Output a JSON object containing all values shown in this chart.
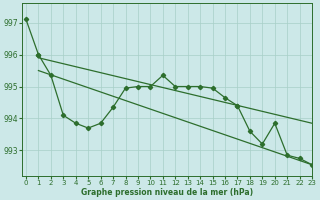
{
  "steep_line": {
    "x": [
      0,
      1
    ],
    "y": [
      997.1,
      996.0
    ]
  },
  "marker_line_a": {
    "x": [
      1,
      2,
      3,
      4,
      5,
      6,
      7,
      8,
      9,
      10,
      11,
      12,
      13,
      14,
      15,
      16,
      17
    ],
    "y": [
      996.0,
      995.35,
      994.1,
      993.85,
      993.7,
      993.85,
      994.35,
      994.95,
      995.0,
      995.0,
      995.35,
      995.0,
      995.0,
      995.0,
      994.95,
      994.65,
      994.4
    ]
  },
  "marker_line_b": {
    "x": [
      17,
      18,
      19,
      20,
      21,
      22,
      23
    ],
    "y": [
      994.4,
      993.6,
      993.2,
      993.85,
      992.85,
      992.75,
      992.55
    ]
  },
  "trend_upper": {
    "x": [
      1,
      23
    ],
    "y": [
      995.9,
      993.85
    ]
  },
  "trend_lower": {
    "x": [
      1,
      23
    ],
    "y": [
      995.5,
      992.55
    ]
  },
  "line_color": "#2d6e2d",
  "bg_color": "#cce8e8",
  "grid_color": "#a8cfc8",
  "xlabel": "Graphe pression niveau de la mer (hPa)",
  "ylim": [
    992.2,
    997.6
  ],
  "xlim": [
    -0.3,
    23
  ],
  "yticks": [
    993,
    994,
    995,
    996,
    997
  ],
  "xticks": [
    0,
    1,
    2,
    3,
    4,
    5,
    6,
    7,
    8,
    9,
    10,
    11,
    12,
    13,
    14,
    15,
    16,
    17,
    18,
    19,
    20,
    21,
    22,
    23
  ]
}
